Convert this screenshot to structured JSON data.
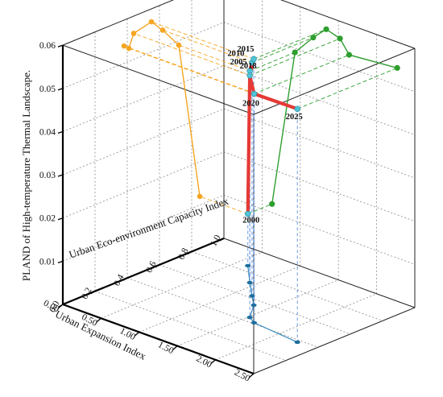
{
  "chart_data": {
    "type": "3d-line",
    "zlabel": "PLAND of High-temperature Thermal Landscape.",
    "xlabel": "Urban Expansion Index",
    "ylabel": "Urban Eco-environment Capacity Index",
    "z_ticks": [
      "0.01",
      "0.02",
      "0.03",
      "0.04",
      "0.05",
      "0.06"
    ],
    "x_ticks": [
      "0.00",
      "0.50",
      "1.00",
      "1.50",
      "2.00",
      "2.50"
    ],
    "y_ticks": [
      "0.0",
      "0.2",
      "0.4",
      "0.6",
      "0.8",
      "1.0"
    ],
    "grid": true,
    "colors": {
      "main_line": "#e53935",
      "main_marker": "#4fc3d6",
      "xz_projection": "#f5a623",
      "yz_projection": "#2e9e2e",
      "xy_projection": "#3b8bc0",
      "connectors_vertical": "#5b8fe0",
      "connectors_to_xz": "#f5a623",
      "connectors_to_yz": "#2e9e2e"
    },
    "series": [
      {
        "years": [
          "2000",
          "2005",
          "2010",
          "2015",
          "2018",
          "2020",
          "2025"
        ],
        "x": [
          0.63,
          0.93,
          1.17,
          1.34,
          1.52,
          1.64,
          2.27
        ],
        "y": [
          0.85,
          0.72,
          0.62,
          0.55,
          0.44,
          0.41,
          0.38
        ],
        "z": [
          0.012,
          0.049,
          0.054,
          0.057,
          0.056,
          0.053,
          0.054
        ]
      }
    ]
  }
}
